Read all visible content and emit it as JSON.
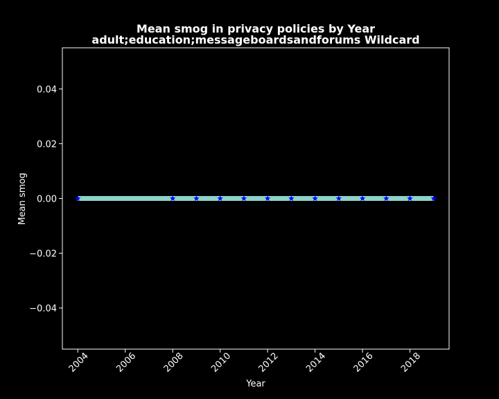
{
  "chart_data": {
    "type": "line",
    "title": "Mean smog in privacy policies by Year",
    "subtitle": "adult;education;messageboardsandforums Wildcard",
    "xlabel": "Year",
    "ylabel": "Mean smog",
    "xlim": [
      2003.35,
      2019.65
    ],
    "ylim": [
      -0.055,
      0.055
    ],
    "x_ticks": [
      2004,
      2006,
      2008,
      2010,
      2012,
      2014,
      2016,
      2018
    ],
    "y_ticks": [
      -0.04,
      -0.02,
      0.0,
      0.02,
      0.04
    ],
    "y_tick_labels": [
      "−0.04",
      "−0.02",
      "0.00",
      "0.02",
      "0.04"
    ],
    "grid": false,
    "series": [
      {
        "x": [
          2004,
          2008,
          2009,
          2010,
          2011,
          2012,
          2013,
          2014,
          2015,
          2016,
          2017,
          2018,
          2019
        ],
        "y": [
          0,
          0,
          0,
          0,
          0,
          0,
          0,
          0,
          0,
          0,
          0,
          0,
          0
        ],
        "line_color": "#8dd3c7",
        "marker_color": "#0000ff",
        "marker": "star"
      }
    ]
  },
  "colors": {
    "background": "#000000",
    "axes": "#ffffff",
    "text": "#ffffff"
  }
}
